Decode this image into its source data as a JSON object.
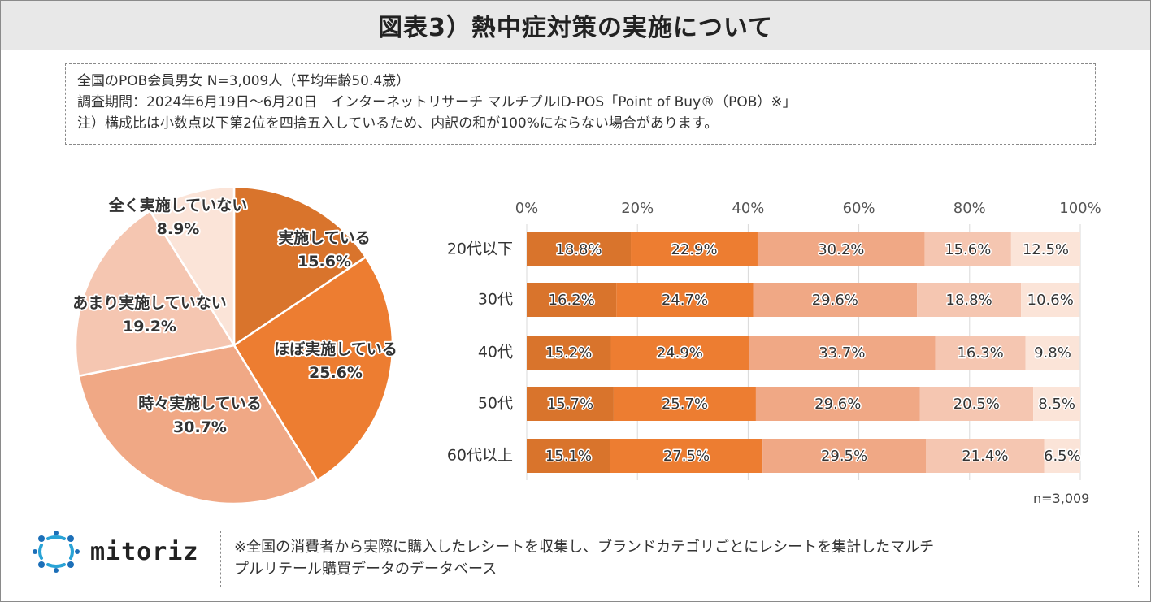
{
  "title": "図表3）熱中症対策の実施について",
  "info": {
    "line1": "全国のPOB会員男女 N=3,009人（平均年齢50.4歳）",
    "line2": "調査期間：2024年6月19日～6月20日　インターネットリサーチ マルチプルID-POS「Point of Buy®（POB）※」",
    "line3": "注）構成比は小数点以下第2位を四捨五入しているため、内訳の和が100%にならない場合があります。"
  },
  "colors": {
    "c1": "#d9742c",
    "c2": "#ed7d31",
    "c3": "#f0a885",
    "c4": "#f5c6b1",
    "c5": "#fbe4d8"
  },
  "chart_data": [
    {
      "type": "pie",
      "slices": [
        {
          "label": "実施している",
          "value": 15.6,
          "display": "15.6%"
        },
        {
          "label": "ほぼ実施している",
          "value": 25.6,
          "display": "25.6%"
        },
        {
          "label": "時々実施している",
          "value": 30.7,
          "display": "30.7%"
        },
        {
          "label": "あまり実施していない",
          "value": 19.2,
          "display": "19.2%"
        },
        {
          "label": "全く実施していない",
          "value": 8.9,
          "display": "8.9%"
        }
      ]
    },
    {
      "type": "bar",
      "orientation": "horizontal",
      "stacked": true,
      "xlim": [
        0,
        100
      ],
      "ticks": [
        "0%",
        "20%",
        "40%",
        "60%",
        "80%",
        "100%"
      ],
      "categories": [
        "20代以下",
        "30代",
        "40代",
        "50代",
        "60代以上"
      ],
      "series": [
        {
          "name": "実施している",
          "values": [
            18.8,
            16.2,
            15.2,
            15.7,
            15.1
          ]
        },
        {
          "name": "ほぼ実施している",
          "values": [
            22.9,
            24.7,
            24.9,
            25.7,
            27.5
          ]
        },
        {
          "name": "時々実施している",
          "values": [
            30.2,
            29.6,
            33.7,
            29.6,
            29.5
          ]
        },
        {
          "name": "あまり実施していない",
          "values": [
            15.6,
            18.8,
            16.3,
            20.5,
            21.4
          ]
        },
        {
          "name": "全く実施していない",
          "values": [
            12.5,
            10.6,
            9.8,
            8.5,
            6.5
          ]
        }
      ],
      "note": "n=3,009"
    }
  ],
  "logo": {
    "name": "mitoriz"
  },
  "footnote": {
    "line1": "※全国の消費者から実際に購入したレシートを収集し、ブランドカテゴリごとにレシートを集計したマルチ",
    "line2": "プルリテール購買データのデータベース"
  }
}
